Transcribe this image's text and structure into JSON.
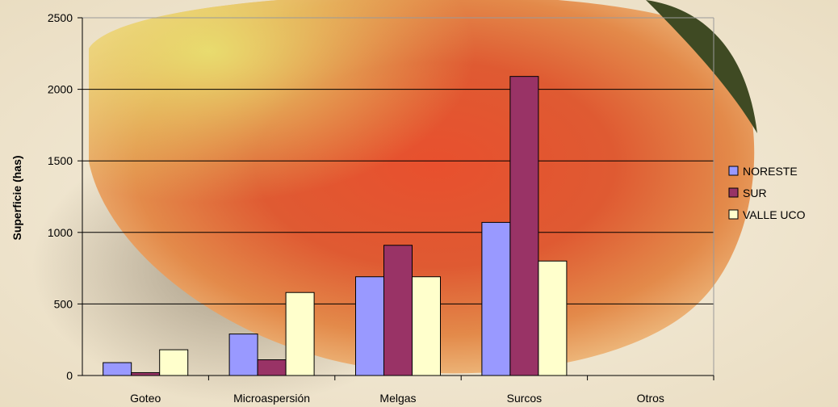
{
  "chart_data": {
    "type": "bar",
    "title": "",
    "xlabel": "",
    "ylabel": "Superficie (has)",
    "ylim": [
      0,
      2500
    ],
    "yticks": [
      0,
      500,
      1000,
      1500,
      2000,
      2500
    ],
    "grid": true,
    "legend_position": "right",
    "categories": [
      "Goteo",
      "Microaspersión",
      "Melgas",
      "Surcos",
      "Otros"
    ],
    "series": [
      {
        "name": "NORESTE",
        "color": "#9999ff",
        "values": [
          90,
          290,
          690,
          1070,
          0
        ]
      },
      {
        "name": "SUR",
        "color": "#993366",
        "values": [
          20,
          110,
          910,
          2090,
          0
        ]
      },
      {
        "name": "VALLE UCO",
        "color": "#ffffcc",
        "values": [
          180,
          580,
          690,
          800,
          0
        ]
      }
    ]
  }
}
